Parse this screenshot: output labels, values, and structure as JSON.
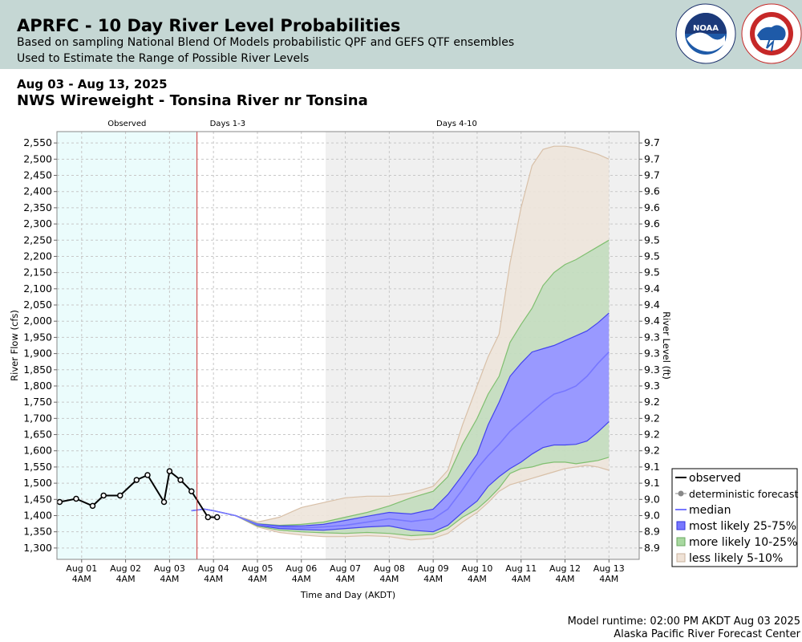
{
  "header": {
    "title": "APRFC - 10 Day River Level Probabilities",
    "subtitle1": "Based on sampling National Blend Of Models probabilistic QPF and GEFS QTF ensembles",
    "subtitle2": "Used to Estimate the Range of Possible River Levels"
  },
  "info": {
    "date_range": "Aug 03 - Aug 13, 2025",
    "station": "NWS Wireweight - Tonsina River nr Tonsina"
  },
  "footer": {
    "model_runtime": "Model runtime: 02:00 PM AKDT Aug 03 2025",
    "center": "Alaska Pacific River Forecast Center"
  },
  "colors": {
    "header_bg": "#c5d7d4",
    "observed_bg": "#ebfcfc",
    "days4_10_bg": "#f0f0f0",
    "observed_line": "#000000",
    "median_line": "#7777ff",
    "band_25_75": "#9999ff",
    "band_10_25": "#c4dcbf",
    "band_5_10": "#ede4da",
    "separator_line": "#cc3333"
  },
  "chart_data": {
    "type": "area",
    "xlabel": "Time and Day (AKDT)",
    "ylabel_left": "River Flow (cfs)",
    "ylabel_right": "River Level (ft)",
    "y_range": [
      1265,
      2585
    ],
    "x_range_days_from_aug01_4am": [
      -0.562,
      12.688
    ],
    "region_labels": [
      "Observed",
      "Days 1-3",
      "Days 4-10"
    ],
    "x_tick_labels": [
      {
        "day": "Aug 01",
        "time": "4AM"
      },
      {
        "day": "Aug 02",
        "time": "4AM"
      },
      {
        "day": "Aug 03",
        "time": "4AM"
      },
      {
        "day": "Aug 04",
        "time": "4AM"
      },
      {
        "day": "Aug 05",
        "time": "4AM"
      },
      {
        "day": "Aug 06",
        "time": "4AM"
      },
      {
        "day": "Aug 07",
        "time": "4AM"
      },
      {
        "day": "Aug 08",
        "time": "4AM"
      },
      {
        "day": "Aug 09",
        "time": "4AM"
      },
      {
        "day": "Aug 10",
        "time": "4AM"
      },
      {
        "day": "Aug 11",
        "time": "4AM"
      },
      {
        "day": "Aug 12",
        "time": "4AM"
      },
      {
        "day": "Aug 13",
        "time": "4AM"
      }
    ],
    "y_ticks_left": [
      "1,300",
      "1,350",
      "1,400",
      "1,450",
      "1,500",
      "1,550",
      "1,600",
      "1,650",
      "1,700",
      "1,750",
      "1,800",
      "1,850",
      "1,900",
      "1,950",
      "2,000",
      "2,050",
      "2,100",
      "2,150",
      "2,200",
      "2,250",
      "2,300",
      "2,350",
      "2,400",
      "2,450",
      "2,500",
      "2,550"
    ],
    "y_ticks_right": [
      "8.9",
      "8.9",
      "9.0",
      "9.0",
      "9.1",
      "9.1",
      "9.2",
      "9.2",
      "9.2",
      "9.2",
      "9.3",
      "9.3",
      "9.3",
      "9.3",
      "9.4",
      "9.4",
      "9.4",
      "9.5",
      "9.5",
      "9.5",
      "9.6",
      "9.6",
      "9.6",
      "9.7",
      "9.7",
      "9.7"
    ],
    "legend": {
      "placement": "bottom-right",
      "items": [
        "observed",
        "deterministic forecast",
        "median",
        "most likely 25-75%",
        "more likely 10-25%",
        "less likely 5-10%"
      ]
    },
    "observed": {
      "x": [
        "Jul 31 16:00",
        "Aug 01 01:00",
        "Aug 01 10:00",
        "Aug 01 16:00",
        "Aug 02 01:00",
        "Aug 02 10:00",
        "Aug 02 16:00",
        "Aug 03 01:00",
        "Aug 03 04:00",
        "Aug 03 10:00",
        "Aug 03 16:00",
        "Aug 04 01:00",
        "Aug 04 06:00"
      ],
      "y": [
        1442,
        1452,
        1430,
        1462,
        1462,
        1510,
        1525,
        1442,
        1537,
        1510,
        1475,
        1395,
        1395
      ]
    },
    "forecast": {
      "x": [
        "Aug 03 16:00",
        "Aug 03 23:00",
        "Aug 04 04:00",
        "Aug 04 16:00",
        "Aug 05 04:00",
        "Aug 05 16:00",
        "Aug 06 04:00",
        "Aug 06 16:00",
        "Aug 07 04:00",
        "Aug 07 16:00",
        "Aug 08 04:00",
        "Aug 08 16:00",
        "Aug 09 04:00",
        "Aug 09 12:00",
        "Aug 09 20:00",
        "Aug 10 04:00",
        "Aug 10 10:00",
        "Aug 10 16:00",
        "Aug 10 22:00",
        "Aug 11 04:00",
        "Aug 11 10:00",
        "Aug 11 16:00",
        "Aug 11 22:00",
        "Aug 12 04:00",
        "Aug 12 10:00",
        "Aug 12 16:00",
        "Aug 12 22:00",
        "Aug 13 04:00"
      ],
      "p05": [
        1415,
        1420,
        1415,
        1400,
        1365,
        1348,
        1340,
        1335,
        1335,
        1338,
        1335,
        1325,
        1330,
        1345,
        1380,
        1410,
        1440,
        1475,
        1495,
        1505,
        1515,
        1525,
        1535,
        1545,
        1550,
        1555,
        1550,
        1540
      ],
      "p10": [
        1415,
        1420,
        1415,
        1400,
        1368,
        1355,
        1350,
        1347,
        1345,
        1348,
        1345,
        1338,
        1342,
        1360,
        1395,
        1420,
        1450,
        1485,
        1530,
        1545,
        1550,
        1560,
        1565,
        1565,
        1560,
        1565,
        1570,
        1580
      ],
      "p25": [
        1415,
        1420,
        1415,
        1400,
        1370,
        1360,
        1357,
        1355,
        1360,
        1365,
        1368,
        1355,
        1350,
        1370,
        1410,
        1445,
        1490,
        1520,
        1545,
        1565,
        1590,
        1610,
        1618,
        1618,
        1620,
        1630,
        1658,
        1690
      ],
      "median": [
        1415,
        1420,
        1415,
        1400,
        1372,
        1365,
        1362,
        1365,
        1370,
        1380,
        1390,
        1382,
        1390,
        1420,
        1480,
        1545,
        1585,
        1620,
        1660,
        1690,
        1720,
        1750,
        1775,
        1785,
        1800,
        1830,
        1870,
        1905
      ],
      "p75": [
        1415,
        1420,
        1415,
        1400,
        1374,
        1368,
        1368,
        1373,
        1385,
        1398,
        1410,
        1405,
        1420,
        1465,
        1525,
        1590,
        1680,
        1750,
        1830,
        1870,
        1905,
        1915,
        1925,
        1940,
        1955,
        1970,
        1995,
        2025
      ],
      "p90": [
        1415,
        1420,
        1415,
        1400,
        1375,
        1370,
        1373,
        1380,
        1395,
        1410,
        1430,
        1455,
        1475,
        1520,
        1620,
        1700,
        1775,
        1830,
        1935,
        1990,
        2040,
        2110,
        2150,
        2175,
        2190,
        2210,
        2230,
        2250
      ],
      "p95": [
        1415,
        1420,
        1415,
        1400,
        1380,
        1395,
        1425,
        1440,
        1455,
        1460,
        1460,
        1470,
        1490,
        1540,
        1680,
        1800,
        1890,
        1960,
        2180,
        2350,
        2480,
        2530,
        2540,
        2540,
        2535,
        2525,
        2515,
        2500
      ]
    }
  }
}
